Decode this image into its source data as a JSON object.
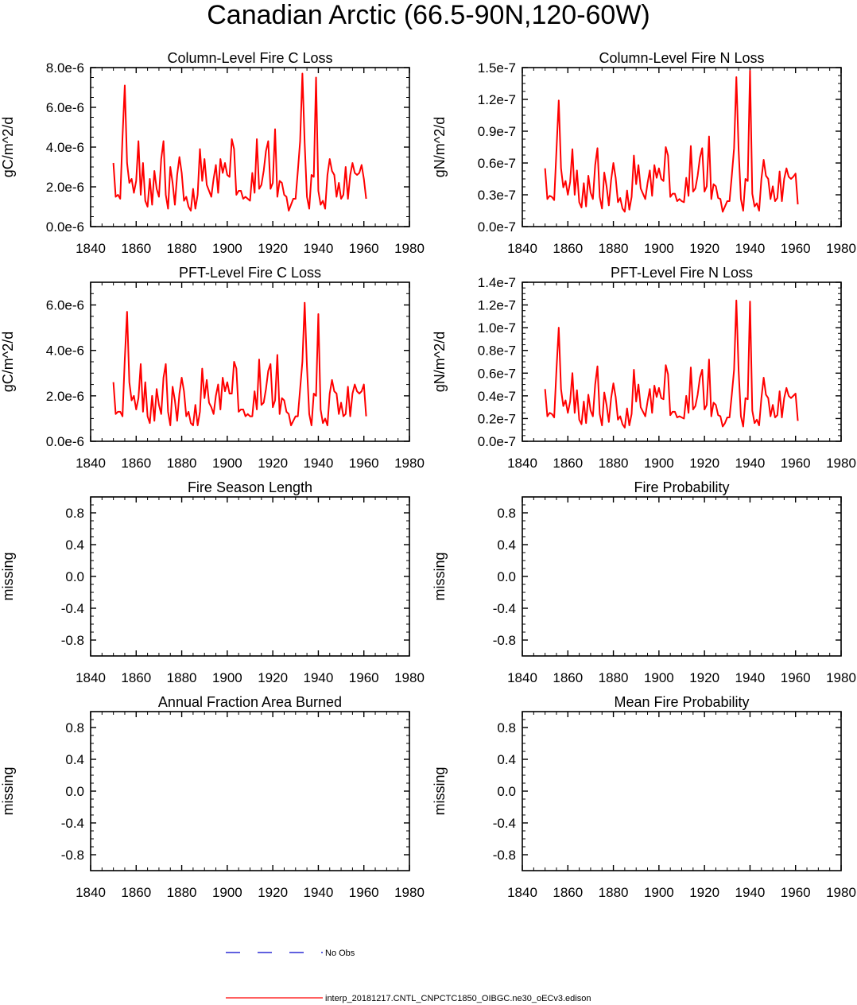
{
  "figure": {
    "title": "Canadian Arctic (66.5-90N,120-60W)"
  },
  "legend": {
    "obs_label": "No Obs",
    "model_label": "interp_20181217.CNTL_CNPCTC1850_OIBGC.ne30_oECv3.edison",
    "obs_color": "#0000cc",
    "model_color": "#ff0000"
  },
  "chart_data": [
    {
      "type": "line",
      "title": "Column-Level Fire C Loss",
      "ylabel": "gC/m^2/d",
      "xlim": [
        1840,
        1980
      ],
      "x_ticks": [
        1840,
        1860,
        1880,
        1900,
        1920,
        1940,
        1960,
        1980
      ],
      "ylim": [
        0,
        8e-06
      ],
      "y_ticks": [
        0,
        2e-06,
        4e-06,
        6e-06,
        8e-06
      ],
      "y_tick_labels": [
        "0.0e-6",
        "2.0e-6",
        "4.0e-6",
        "6.0e-6",
        "8.0e-6"
      ],
      "x_start": 1850,
      "series": [
        {
          "name": "interp_20181217.CNTL_CNPCTC1850_OIBGC.ne30_oECv3.edison",
          "values": [
            3.2e-06,
            1.5e-06,
            1.6e-06,
            1.4e-06,
            4.5e-06,
            7.1e-06,
            3.2e-06,
            2.2e-06,
            2.4e-06,
            1.7e-06,
            2.3e-06,
            4.3e-06,
            1.6e-06,
            3.2e-06,
            1.3e-06,
            1e-06,
            2.4e-06,
            1.1e-06,
            2.8e-06,
            1.9e-06,
            1.5e-06,
            3.4e-06,
            4.3e-06,
            1.6e-06,
            9e-07,
            3e-06,
            2.2e-06,
            1.1e-06,
            2.6e-06,
            3.5e-06,
            2.7e-06,
            1.3e-06,
            1.5e-06,
            1e-06,
            8e-07,
            1.9e-06,
            9e-07,
            1.6e-06,
            3.9e-06,
            2.3e-06,
            3.4e-06,
            2.1e-06,
            1.8e-06,
            1.5e-06,
            2.4e-06,
            3.1e-06,
            1.7e-06,
            3.4e-06,
            2.7e-06,
            3.2e-06,
            2.6e-06,
            2.5e-06,
            4.4e-06,
            3.9e-06,
            1.6e-06,
            1.8e-06,
            1.8e-06,
            1.4e-06,
            1.5e-06,
            1.4e-06,
            1.3e-06,
            2.7e-06,
            1.7e-06,
            4.4e-06,
            1.9e-06,
            2.1e-06,
            2.8e-06,
            3.8e-06,
            4.3e-06,
            1.9e-06,
            2.2e-06,
            4.9e-06,
            1.5e-06,
            2.3e-06,
            2.2e-06,
            1.6e-06,
            1.5e-06,
            8e-07,
            1.1e-06,
            1.4e-06,
            1.4e-06,
            2.8e-06,
            4.3e-06,
            7.7e-06,
            4.2e-06,
            1.5e-06,
            9e-07,
            2.6e-06,
            2.5e-06,
            7.5e-06,
            1.8e-06,
            1.1e-06,
            1.3e-06,
            9e-07,
            2.6e-06,
            3.4e-06,
            2.8e-06,
            2.6e-06,
            1.5e-06,
            2.2e-06,
            1.4e-06,
            1.6e-06,
            3e-06,
            1.4e-06,
            2.6e-06,
            3.2e-06,
            2.7e-06,
            2.6e-06,
            2.7e-06,
            3.1e-06,
            2.4e-06,
            1.4e-06
          ]
        }
      ]
    },
    {
      "type": "line",
      "title": "Column-Level Fire N Loss",
      "ylabel": "gN/m^2/d",
      "xlim": [
        1840,
        1980
      ],
      "x_ticks": [
        1840,
        1860,
        1880,
        1900,
        1920,
        1940,
        1960,
        1980
      ],
      "ylim": [
        0,
        1.5e-07
      ],
      "y_ticks": [
        0,
        3e-08,
        6e-08,
        9e-08,
        1.2e-07,
        1.5e-07
      ],
      "y_tick_labels": [
        "0.0e-7",
        "0.3e-7",
        "0.6e-7",
        "0.9e-7",
        "1.2e-7",
        "1.5e-7"
      ],
      "x_start": 1850,
      "series": [
        {
          "name": "interp_20181217.CNTL_CNPCTC1850_OIBGC.ne30_oECv3.edison",
          "values": [
            5.5e-08,
            2.6e-08,
            2.9e-08,
            2.8e-08,
            2.5e-08,
            7.2e-08,
            1.19e-07,
            5.5e-08,
            3.7e-08,
            4.3e-08,
            3e-08,
            4.2e-08,
            7.3e-08,
            3e-08,
            5.3e-08,
            2.3e-08,
            1.8e-08,
            4.1e-08,
            1.9e-08,
            4.8e-08,
            3.2e-08,
            2.6e-08,
            5.8e-08,
            7.4e-08,
            2.8e-08,
            1.7e-08,
            5.1e-08,
            3.8e-08,
            2e-08,
            4.4e-08,
            6e-08,
            4.6e-08,
            2.3e-08,
            2.7e-08,
            1.7e-08,
            1.4e-08,
            3.4e-08,
            1.6e-08,
            2.8e-08,
            6.7e-08,
            4e-08,
            5.8e-08,
            3.6e-08,
            3.1e-08,
            2.6e-08,
            4.1e-08,
            5.3e-08,
            2.9e-08,
            5.8e-08,
            4.6e-08,
            5.5e-08,
            4.5e-08,
            4.3e-08,
            7.5e-08,
            6.7e-08,
            2.8e-08,
            3.1e-08,
            3.1e-08,
            2.4e-08,
            2.6e-08,
            2.4e-08,
            2.3e-08,
            4.6e-08,
            2.9e-08,
            7.6e-08,
            3.3e-08,
            3.6e-08,
            4.8e-08,
            6.5e-08,
            7.4e-08,
            3.3e-08,
            3.8e-08,
            8.5e-08,
            2.6e-08,
            4e-08,
            3.8e-08,
            2.7e-08,
            2.6e-08,
            1.4e-08,
            1.9e-08,
            2.4e-08,
            2.4e-08,
            4.8e-08,
            7.4e-08,
            1.41e-07,
            7.2e-08,
            2.6e-08,
            1.5e-08,
            4.5e-08,
            4.3e-08,
            1.47e-07,
            3.1e-08,
            1.9e-08,
            2.2e-08,
            1.5e-08,
            4.5e-08,
            6.3e-08,
            4.8e-08,
            4.5e-08,
            2.6e-08,
            3.8e-08,
            2.4e-08,
            2.7e-08,
            5.2e-08,
            2.4e-08,
            4.5e-08,
            5.5e-08,
            4.7e-08,
            4.5e-08,
            4.7e-08,
            5e-08,
            2.1e-08
          ]
        }
      ]
    },
    {
      "type": "line",
      "title": "PFT-Level Fire C Loss",
      "ylabel": "gC/m^2/d",
      "xlim": [
        1840,
        1980
      ],
      "x_ticks": [
        1840,
        1860,
        1880,
        1900,
        1920,
        1940,
        1960,
        1980
      ],
      "ylim": [
        0,
        7e-06
      ],
      "y_ticks": [
        0,
        2e-06,
        4e-06,
        6e-06
      ],
      "y_tick_labels": [
        "0.0e-6",
        "2.0e-6",
        "4.0e-6",
        "6.0e-6"
      ],
      "x_start": 1850,
      "series": [
        {
          "name": "interp_20181217.CNTL_CNPCTC1850_OIBGC.ne30_oECv3.edison",
          "values": [
            2.6e-06,
            1.2e-06,
            1.3e-06,
            1.3e-06,
            1.1e-06,
            3.6e-06,
            5.7e-06,
            2.6e-06,
            1.8e-06,
            2e-06,
            1.4e-06,
            1.9e-06,
            3.4e-06,
            1.3e-06,
            2.6e-06,
            1.1e-06,
            8e-07,
            2e-06,
            9e-07,
            2.3e-06,
            1.6e-06,
            1.2e-06,
            2.8e-06,
            3.4e-06,
            1.3e-06,
            7e-07,
            2.4e-06,
            1.8e-06,
            9e-07,
            2.1e-06,
            2.8e-06,
            2.2e-06,
            1.1e-06,
            1.3e-06,
            8e-07,
            7e-07,
            1.6e-06,
            7e-07,
            1.3e-06,
            3.2e-06,
            1.9e-06,
            2.7e-06,
            1.7e-06,
            1.5e-06,
            1.2e-06,
            2e-06,
            2.5e-06,
            1.4e-06,
            2.8e-06,
            2.2e-06,
            2.6e-06,
            2.1e-06,
            2.1e-06,
            3.5e-06,
            3.2e-06,
            1.3e-06,
            1.4e-06,
            1.4e-06,
            1.1e-06,
            1.2e-06,
            1.1e-06,
            1.1e-06,
            2.2e-06,
            1.4e-06,
            3.6e-06,
            1.6e-06,
            1.7e-06,
            2.3e-06,
            3.1e-06,
            3.4e-06,
            1.5e-06,
            1.8e-06,
            3.8e-06,
            1.2e-06,
            1.9e-06,
            1.8e-06,
            1.3e-06,
            1.2e-06,
            7e-07,
            9e-07,
            1.1e-06,
            1.1e-06,
            2.3e-06,
            3.5e-06,
            6.1e-06,
            3.3e-06,
            1.2e-06,
            7e-07,
            2.1e-06,
            2e-06,
            5.6e-06,
            1.4e-06,
            8e-07,
            1e-06,
            7e-07,
            2.1e-06,
            2.7e-06,
            2.2e-06,
            2.1e-06,
            1.2e-06,
            1.7e-06,
            1.1e-06,
            1.2e-06,
            2.4e-06,
            1.1e-06,
            2.1e-06,
            2.5e-06,
            2.2e-06,
            2.1e-06,
            2.2e-06,
            2.5e-06,
            1.1e-06
          ]
        }
      ]
    },
    {
      "type": "line",
      "title": "PFT-Level Fire N Loss",
      "ylabel": "gN/m^2/d",
      "xlim": [
        1840,
        1980
      ],
      "x_ticks": [
        1840,
        1860,
        1880,
        1900,
        1920,
        1940,
        1960,
        1980
      ],
      "ylim": [
        0,
        1.4e-07
      ],
      "y_ticks": [
        0,
        2e-08,
        4e-08,
        6e-08,
        8e-08,
        1e-07,
        1.2e-07,
        1.4e-07
      ],
      "y_tick_labels": [
        "0.0e-7",
        "0.2e-7",
        "0.4e-7",
        "0.6e-7",
        "0.8e-7",
        "1.0e-7",
        "1.2e-7",
        "1.4e-7"
      ],
      "x_start": 1850,
      "series": [
        {
          "name": "interp_20181217.CNTL_CNPCTC1850_OIBGC.ne30_oECv3.edison",
          "values": [
            4.6e-08,
            2.2e-08,
            2.5e-08,
            2.4e-08,
            2.1e-08,
            6.3e-08,
            1e-07,
            4.6e-08,
            3.1e-08,
            3.6e-08,
            2.5e-08,
            3.5e-08,
            6e-08,
            2.5e-08,
            4.5e-08,
            1.9e-08,
            1.5e-08,
            3.5e-08,
            1.6e-08,
            4.1e-08,
            2.7e-08,
            2.2e-08,
            5e-08,
            6.6e-08,
            2.4e-08,
            1.4e-08,
            4.3e-08,
            3.2e-08,
            1.7e-08,
            3.8e-08,
            5.1e-08,
            3.9e-08,
            1.9e-08,
            2.2e-08,
            1.5e-08,
            1.2e-08,
            2.9e-08,
            1.4e-08,
            2.4e-08,
            6.3e-08,
            3.5e-08,
            5e-08,
            3e-08,
            2.6e-08,
            2.2e-08,
            3.5e-08,
            4.6e-08,
            2.5e-08,
            4.9e-08,
            3.9e-08,
            4.7e-08,
            3.8e-08,
            3.7e-08,
            6.7e-08,
            5.9e-08,
            2.3e-08,
            2.6e-08,
            2.6e-08,
            2.1e-08,
            2.2e-08,
            2.1e-08,
            2e-08,
            4e-08,
            2.5e-08,
            6.5e-08,
            2.8e-08,
            3.1e-08,
            4.1e-08,
            5.6e-08,
            6.3e-08,
            2.8e-08,
            3.2e-08,
            7.2e-08,
            2.2e-08,
            3.4e-08,
            3.2e-08,
            2.3e-08,
            2.2e-08,
            1.3e-08,
            1.6e-08,
            2.1e-08,
            2.1e-08,
            4.1e-08,
            6.3e-08,
            1.24e-07,
            6.2e-08,
            2.2e-08,
            1.3e-08,
            3.8e-08,
            3.7e-08,
            1.23e-07,
            2.7e-08,
            1.6e-08,
            1.9e-08,
            1.4e-08,
            3.8e-08,
            5.6e-08,
            4.1e-08,
            3.8e-08,
            2.2e-08,
            3.2e-08,
            2.1e-08,
            2.3e-08,
            4.4e-08,
            2.1e-08,
            3.8e-08,
            4.7e-08,
            4e-08,
            3.8e-08,
            4e-08,
            4.2e-08,
            1.8e-08
          ]
        }
      ]
    },
    {
      "type": "line",
      "title": "Fire Season Length",
      "ylabel": "missing",
      "xlim": [
        1840,
        1980
      ],
      "x_ticks": [
        1840,
        1860,
        1880,
        1900,
        1920,
        1940,
        1960,
        1980
      ],
      "ylim": [
        -1,
        1
      ],
      "y_ticks": [
        -0.8,
        -0.4,
        0,
        0.4,
        0.8
      ],
      "y_tick_labels": [
        "-0.8",
        "-0.4",
        "0.0",
        "0.4",
        "0.8"
      ],
      "series": []
    },
    {
      "type": "line",
      "title": "Fire Probability",
      "ylabel": "missing",
      "xlim": [
        1840,
        1980
      ],
      "x_ticks": [
        1840,
        1860,
        1880,
        1900,
        1920,
        1940,
        1960,
        1980
      ],
      "ylim": [
        -1,
        1
      ],
      "y_ticks": [
        -0.8,
        -0.4,
        0,
        0.4,
        0.8
      ],
      "y_tick_labels": [
        "-0.8",
        "-0.4",
        "0.0",
        "0.4",
        "0.8"
      ],
      "series": []
    },
    {
      "type": "line",
      "title": "Annual Fraction Area Burned",
      "ylabel": "missing",
      "xlim": [
        1840,
        1980
      ],
      "x_ticks": [
        1840,
        1860,
        1880,
        1900,
        1920,
        1940,
        1960,
        1980
      ],
      "ylim": [
        -1,
        1
      ],
      "y_ticks": [
        -0.8,
        -0.4,
        0,
        0.4,
        0.8
      ],
      "y_tick_labels": [
        "-0.8",
        "-0.4",
        "0.0",
        "0.4",
        "0.8"
      ],
      "series": []
    },
    {
      "type": "line",
      "title": "Mean Fire Probability",
      "ylabel": "missing",
      "xlim": [
        1840,
        1980
      ],
      "x_ticks": [
        1840,
        1860,
        1880,
        1900,
        1920,
        1940,
        1960,
        1980
      ],
      "ylim": [
        -1,
        1
      ],
      "y_ticks": [
        -0.8,
        -0.4,
        0,
        0.4,
        0.8
      ],
      "y_tick_labels": [
        "-0.8",
        "-0.4",
        "0.0",
        "0.4",
        "0.8"
      ],
      "series": []
    }
  ]
}
